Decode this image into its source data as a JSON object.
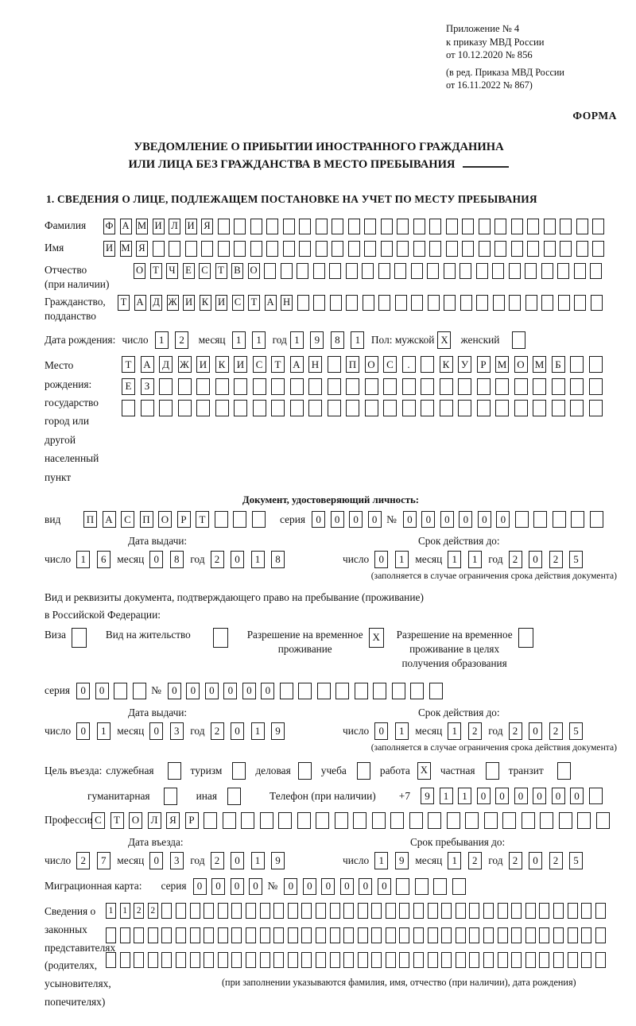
{
  "annex": {
    "lines": [
      "Приложение № 4",
      "к приказу МВД России",
      "от 10.12.2020 № 856"
    ],
    "amend": [
      "(в ред. Приказа МВД России",
      "от 16.11.2022 № 867)"
    ],
    "form_word": "ФОРМА"
  },
  "title": {
    "line1": "УВЕДОМЛЕНИЕ О ПРИБЫТИИ ИНОСТРАННОГО ГРАЖДАНИНА",
    "line2": "ИЛИ ЛИЦА БЕЗ ГРАЖДАНСТВА В МЕСТО ПРЕБЫВАНИЯ"
  },
  "section1_heading": "1. СВЕДЕНИЯ О ЛИЦЕ, ПОДЛЕЖАЩЕМ ПОСТАНОВКЕ НА УЧЕТ ПО МЕСТУ ПРЕБЫВАНИЯ",
  "common": {
    "day": "число",
    "month": "месяц",
    "year": "год",
    "series_label": "серия",
    "number_label": "№",
    "issue_head": "Дата выдачи:",
    "valid_head": "Срок действия до:",
    "valid_note": "(заполняется в случае ограничения срока действия документа)"
  },
  "person": {
    "surname_label": "Фамилия",
    "surname": {
      "v": "ФАМИЛИЯ",
      "n": 31
    },
    "name_label": "Имя",
    "name": {
      "v": "ИМЯ",
      "n": 31
    },
    "patronymic_label1": "Отчество",
    "patronymic_label2": "(при наличии)",
    "patronymic": {
      "v": "ОТЧЕСТВО",
      "n": 29
    },
    "citizenship_label1": "Гражданство,",
    "citizenship_label2": "подданство",
    "citizenship": {
      "v": "ТАДЖИКИСТАН",
      "n": 30
    },
    "dob_label": "Дата рождения:",
    "dob": {
      "d": {
        "v": "12",
        "n": 2
      },
      "m": {
        "v": "11",
        "n": 2
      },
      "y": {
        "v": "1981",
        "n": 4
      }
    },
    "sex_label": "Пол: мужской",
    "sex_male": {
      "v": "X",
      "n": 1
    },
    "sex_female_label": "женский",
    "sex_female": {
      "v": "",
      "n": 1
    },
    "birthplace_label": "Место рождения:",
    "birthplace_sub": [
      "государство",
      "город или другой",
      "населенный пункт"
    ],
    "birthplace_rows": [
      {
        "v": "ТАДЖИКИСТАН ПОС. КУРМОМБ",
        "n": 26
      },
      {
        "v": "ЕЗ",
        "n": 26
      },
      {
        "v": "",
        "n": 26
      }
    ]
  },
  "passport": {
    "heading": "Документ, удостоверяющий личность:",
    "type_label": "вид",
    "type": {
      "v": "ПАСПОРТ",
      "n": 10
    },
    "series": {
      "v": "0000",
      "n": 4
    },
    "number": {
      "v": "000000",
      "n": 11
    },
    "issue": {
      "d": {
        "v": "16",
        "n": 2
      },
      "m": {
        "v": "08",
        "n": 2
      },
      "y": {
        "v": "2018",
        "n": 4
      }
    },
    "valid": {
      "d": {
        "v": "01",
        "n": 2
      },
      "m": {
        "v": "11",
        "n": 2
      },
      "y": {
        "v": "2025",
        "n": 4
      }
    }
  },
  "permit": {
    "intro1": "Вид и реквизиты документа, подтверждающего право на пребывание (проживание)",
    "intro2": "в Российской Федерации:",
    "visa_label": "Виза",
    "visa_box": {
      "v": "",
      "n": 1
    },
    "residence_label": "Вид на жительство",
    "residence_box": {
      "v": "",
      "n": 1
    },
    "temp_label1": "Разрешение на временное",
    "temp_label2": "проживание",
    "temp_box": {
      "v": "X",
      "n": 1
    },
    "edu_label1": "Разрешение на временное",
    "edu_label2": "проживание в целях",
    "edu_label3": "получения образования",
    "edu_box": {
      "v": "",
      "n": 1
    },
    "series": {
      "v": "00",
      "n": 4
    },
    "number": {
      "v": "000000",
      "n": 15
    },
    "issue": {
      "d": {
        "v": "01",
        "n": 2
      },
      "m": {
        "v": "03",
        "n": 2
      },
      "y": {
        "v": "2019",
        "n": 4
      }
    },
    "valid": {
      "d": {
        "v": "01",
        "n": 2
      },
      "m": {
        "v": "12",
        "n": 2
      },
      "y": {
        "v": "2025",
        "n": 4
      }
    }
  },
  "purpose": {
    "label": "Цель въезда:",
    "items": [
      {
        "label": "служебная",
        "box": {
          "v": "",
          "n": 1
        }
      },
      {
        "label": "туризм",
        "box": {
          "v": "",
          "n": 1
        }
      },
      {
        "label": "деловая",
        "box": {
          "v": "",
          "n": 1
        }
      },
      {
        "label": "учеба",
        "box": {
          "v": "",
          "n": 1
        }
      },
      {
        "label": "работа",
        "box": {
          "v": "X",
          "n": 1
        }
      },
      {
        "label": "частная",
        "box": {
          "v": "",
          "n": 1
        }
      },
      {
        "label": "транзит",
        "box": {
          "v": "",
          "n": 1
        }
      },
      {
        "label": "гуманитарная",
        "box": {
          "v": "",
          "n": 1
        }
      },
      {
        "label": "иная",
        "box": {
          "v": "",
          "n": 1
        }
      }
    ]
  },
  "phone": {
    "label": "Телефон (при наличии)",
    "prefix": "+7",
    "value": {
      "v": "911000000",
      "n": 10
    }
  },
  "profession": {
    "label": "Профессия",
    "value": {
      "v": "СТОЛЯР",
      "n": 28
    }
  },
  "entry": {
    "issue_head": "Дата въезда:",
    "valid_head": "Срок пребывания до:",
    "issue": {
      "d": {
        "v": "27",
        "n": 2
      },
      "m": {
        "v": "03",
        "n": 2
      },
      "y": {
        "v": "2019",
        "n": 4
      }
    },
    "valid": {
      "d": {
        "v": "19",
        "n": 2
      },
      "m": {
        "v": "12",
        "n": 2
      },
      "y": {
        "v": "2025",
        "n": 4
      }
    }
  },
  "migration_card": {
    "label": "Миграционная карта:",
    "series": {
      "v": "0000",
      "n": 4
    },
    "number": {
      "v": "000000",
      "n": 10
    }
  },
  "guardians": {
    "lines": [
      "Сведения о",
      "законных",
      "представителях",
      "(родителях,",
      "усыновителях,",
      "попечителях)"
    ],
    "rows": [
      {
        "v": "1122",
        "n": 36
      },
      {
        "v": "",
        "n": 36
      },
      {
        "v": "",
        "n": 36
      }
    ],
    "note": "(при заполнении указываются фамилия, имя, отчество (при наличии), дата рождения)"
  }
}
